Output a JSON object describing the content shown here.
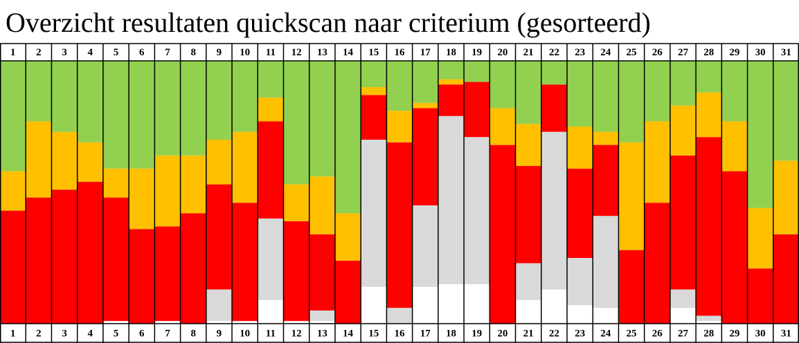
{
  "chart_data": {
    "type": "stacked-bar",
    "title": "Overzicht resultaten quickscan naar criterium (gesorteerd)",
    "categories": [
      "1",
      "2",
      "3",
      "4",
      "5",
      "6",
      "7",
      "8",
      "9",
      "10",
      "11",
      "12",
      "13",
      "14",
      "15",
      "16",
      "17",
      "18",
      "19",
      "20",
      "21",
      "22",
      "23",
      "24",
      "25",
      "26",
      "27",
      "28",
      "29",
      "30",
      "31"
    ],
    "ylim": [
      0,
      100
    ],
    "series": [
      {
        "color": "#ffffff",
        "values": [
          0,
          0,
          0,
          0,
          1,
          0,
          1,
          0,
          1,
          1,
          9,
          1,
          1,
          0,
          14,
          0,
          14,
          15,
          15,
          0,
          9,
          13,
          7,
          6,
          0,
          0,
          6,
          1,
          0,
          0,
          0
        ]
      },
      {
        "color": "#d9d9d9",
        "values": [
          0,
          0,
          0,
          0,
          0,
          0,
          0,
          0,
          12,
          0,
          31,
          0,
          4,
          0,
          56,
          6,
          31,
          64,
          56,
          0,
          14,
          60,
          18,
          35,
          0,
          0,
          7,
          2,
          0,
          0,
          0
        ]
      },
      {
        "color": "#ff0000",
        "values": [
          43,
          48,
          51,
          54,
          47,
          36,
          36,
          42,
          40,
          45,
          37,
          38,
          29,
          24,
          17,
          63,
          37,
          12,
          21,
          68,
          37,
          18,
          34,
          27,
          28,
          46,
          51,
          68,
          58,
          21,
          34
        ]
      },
      {
        "color": "#ffc000",
        "values": [
          15,
          29,
          22,
          15,
          11,
          23,
          27,
          22,
          17,
          27,
          9,
          14,
          22,
          18,
          3,
          12,
          2,
          2,
          0,
          14,
          16,
          0,
          16,
          5,
          41,
          31,
          19,
          17,
          19,
          23,
          28
        ]
      },
      {
        "color": "#92d050",
        "values": [
          42,
          23,
          27,
          31,
          41,
          41,
          36,
          36,
          30,
          27,
          14,
          47,
          44,
          58,
          10,
          19,
          16,
          7,
          8,
          18,
          24,
          9,
          25,
          27,
          31,
          23,
          17,
          12,
          23,
          56,
          38
        ]
      }
    ]
  }
}
